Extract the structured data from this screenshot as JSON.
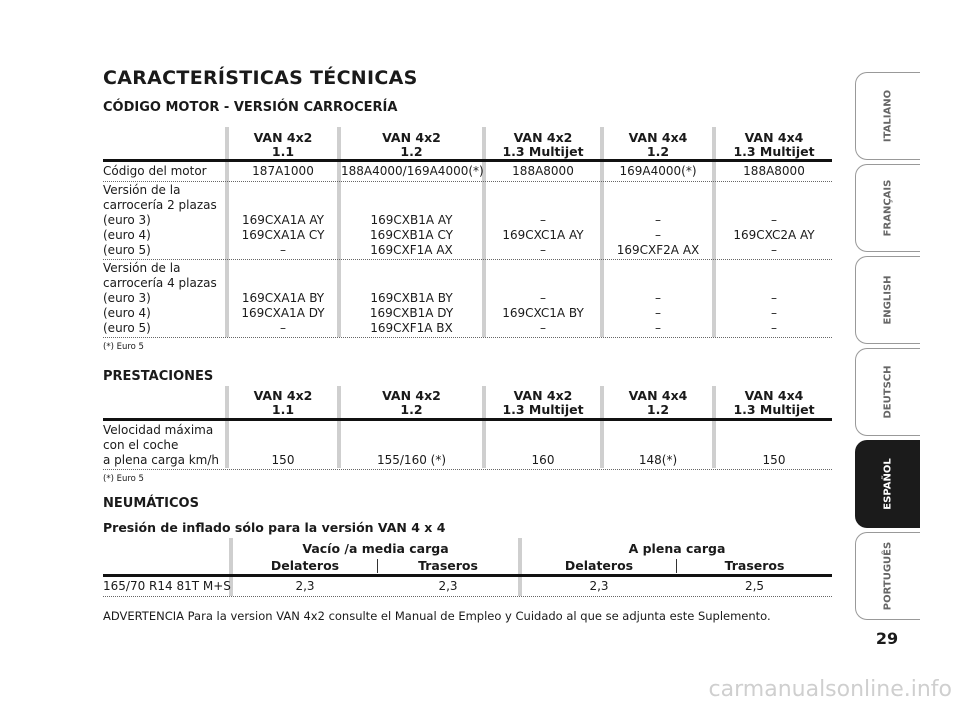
{
  "title": "CARACTERÍSTICAS TÉCNICAS",
  "section1": {
    "heading": "CÓDIGO MOTOR - VERSIÓN CARROCERÍA",
    "columns": [
      {
        "l1": "VAN 4x2",
        "l2": "1.1"
      },
      {
        "l1": "VAN 4x2",
        "l2": "1.2"
      },
      {
        "l1": "VAN 4x2",
        "l2": "1.3 Multijet"
      },
      {
        "l1": "VAN 4x4",
        "l2": "1.2"
      },
      {
        "l1": "VAN 4x4",
        "l2": "1.3 Multijet"
      }
    ],
    "row1_label": "Código del motor",
    "row1": [
      "187A1000",
      "188A4000/169A4000(*)",
      "188A8000",
      "169A4000(*)",
      "188A8000"
    ],
    "row2_label": "Versión de la\ncarrocería 2 plazas\n(euro 3)\n(euro 4)\n(euro 5)",
    "row2": [
      "\n\n169CXA1A AY\n169CXA1A CY\n–",
      "\n\n169CXB1A AY\n169CXB1A CY\n169CXF1A AX",
      "\n\n–\n169CXC1A AY\n–",
      "\n\n–\n–\n169CXF2A AX",
      "\n\n–\n169CXC2A AY\n–"
    ],
    "row3_label": "Versión de la\ncarrocería 4 plazas\n(euro 3)\n(euro 4)\n(euro 5)",
    "row3": [
      "\n\n169CXA1A BY\n169CXA1A DY\n–",
      "\n\n169CXB1A BY\n169CXB1A DY\n169CXF1A BX",
      "\n\n–\n169CXC1A BY\n–",
      "\n\n–\n–\n–",
      "\n\n–\n–\n–"
    ],
    "note": "(*) Euro 5"
  },
  "section2": {
    "heading": "PRESTACIONES",
    "row_label": "Velocidad máxima\ncon el coche\na plena carga km/h",
    "row": [
      "150",
      "155/160 (*)",
      "160",
      "148(*)",
      "150"
    ],
    "note": "(*) Euro 5"
  },
  "section3": {
    "heading": "NEUMÁTICOS",
    "subheading": "Presión de inflado sólo para la versión VAN 4 x 4",
    "group1": "Vacío /a media carga",
    "group2": "A plena carga",
    "cols": [
      "Delateros",
      "Traseros",
      "Delateros",
      "Traseros"
    ],
    "row_label": "165/70 R14 81T M+S",
    "row": [
      "2,3",
      "2,3",
      "2,3",
      "2,5"
    ]
  },
  "advertencia": "ADVERTENCIA Para la version VAN 4x2 consulte el Manual de Empleo y Cuidado al que se adjunta este Suplemento.",
  "page_number": "29",
  "tabs": [
    "ITALIANO",
    "FRANÇAIS",
    "ENGLISH",
    "DEUTSCH",
    "ESPAÑOL",
    "PORTUGUÊS"
  ],
  "watermark": "carmanualsonline.info"
}
